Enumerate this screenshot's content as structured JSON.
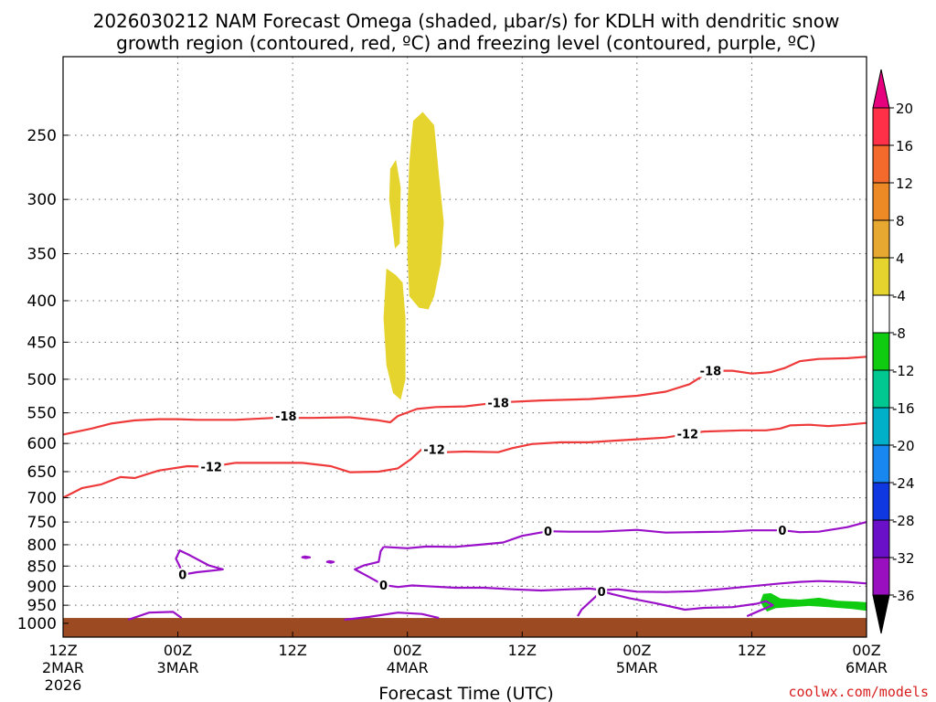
{
  "chart_data": {
    "type": "heatmap",
    "title_line1": "2026030212 NAM Forecast Omega (shaded, µbar/s) for KDLH with dendritic snow",
    "title_line2": "growth region (contoured, red, ºC) and freezing level (contoured, purple, ºC)",
    "xlabel": "Forecast Time (UTC)",
    "ylabel": "",
    "y_scale": "log-pressure",
    "y_ticks": [
      250,
      300,
      350,
      400,
      450,
      500,
      550,
      600,
      650,
      700,
      750,
      800,
      850,
      900,
      950,
      1000
    ],
    "y_unit": "mb",
    "x_ticks": [
      {
        "hour": 0,
        "l1": "12Z",
        "l2": "2MAR",
        "l3": "2026"
      },
      {
        "hour": 12,
        "l1": "00Z",
        "l2": "3MAR",
        "l3": ""
      },
      {
        "hour": 24,
        "l1": "12Z",
        "l2": "",
        "l3": ""
      },
      {
        "hour": 36,
        "l1": "00Z",
        "l2": "4MAR",
        "l3": ""
      },
      {
        "hour": 48,
        "l1": "12Z",
        "l2": "",
        "l3": ""
      },
      {
        "hour": 60,
        "l1": "00Z",
        "l2": "5MAR",
        "l3": ""
      },
      {
        "hour": 72,
        "l1": "12Z",
        "l2": "",
        "l3": ""
      },
      {
        "hour": 84,
        "l1": "00Z",
        "l2": "6MAR",
        "l3": ""
      }
    ],
    "x_range_hours": [
      0,
      84
    ],
    "grid": true,
    "colorbar": {
      "levels": [
        20,
        16,
        12,
        8,
        4,
        -4,
        -8,
        -12,
        -16,
        -20,
        -24,
        -28,
        -32,
        -36
      ],
      "colors": [
        "#ff3048",
        "#f46a2c",
        "#ee8a26",
        "#e6a830",
        "#e6d42e",
        "#ffffff",
        "#10cc10",
        "#00c890",
        "#00b0c8",
        "#1888f0",
        "#1038e0",
        "#6a10c8",
        "#9a10c0",
        "#a8a8a8"
      ],
      "top_arrow_color": "#e6007e",
      "bottom_arrow_color": "#000000"
    },
    "contour_colors": {
      "dgz": "#ee3a3a",
      "freezing": "#9a10c8",
      "ground": "#9b4a22"
    },
    "dgz_contours": [
      {
        "label": "-18",
        "label_points": [
          [
            23.3,
            555
          ],
          [
            45.5,
            534
          ],
          [
            67.7,
            488
          ]
        ],
        "points": [
          [
            0,
            585
          ],
          [
            3,
            575
          ],
          [
            5,
            567
          ],
          [
            7.5,
            562
          ],
          [
            10,
            560
          ],
          [
            12,
            560
          ],
          [
            14,
            561
          ],
          [
            18,
            561
          ],
          [
            22,
            558
          ],
          [
            26,
            558
          ],
          [
            30,
            557
          ],
          [
            33,
            562
          ],
          [
            34.2,
            565
          ],
          [
            35,
            555
          ],
          [
            37,
            544
          ],
          [
            39,
            541
          ],
          [
            42,
            540
          ],
          [
            45.5,
            534
          ],
          [
            50,
            531
          ],
          [
            55,
            529
          ],
          [
            60,
            524
          ],
          [
            63,
            518
          ],
          [
            65.5,
            507
          ],
          [
            67.7,
            488
          ],
          [
            70,
            488
          ],
          [
            72,
            492
          ],
          [
            74,
            490
          ],
          [
            75.5,
            484
          ],
          [
            77,
            475
          ],
          [
            79,
            472
          ],
          [
            82,
            471
          ],
          [
            84,
            469
          ]
        ]
      },
      {
        "label": "-12",
        "label_points": [
          [
            15.5,
            641
          ],
          [
            38.8,
            610
          ],
          [
            65.3,
            584
          ]
        ],
        "points": [
          [
            0,
            700
          ],
          [
            2,
            681
          ],
          [
            4,
            674
          ],
          [
            6,
            660
          ],
          [
            7.5,
            662
          ],
          [
            10,
            648
          ],
          [
            13,
            640
          ],
          [
            15.5,
            641
          ],
          [
            18,
            634
          ],
          [
            21,
            634
          ],
          [
            25,
            634
          ],
          [
            28,
            640
          ],
          [
            30,
            651
          ],
          [
            33,
            650
          ],
          [
            35,
            644
          ],
          [
            36.4,
            627
          ],
          [
            37.5,
            610
          ],
          [
            38.8,
            610
          ],
          [
            40,
            615
          ],
          [
            42,
            614
          ],
          [
            45.5,
            615
          ],
          [
            47,
            608
          ],
          [
            49,
            601
          ],
          [
            52,
            598
          ],
          [
            55,
            598
          ],
          [
            58,
            595
          ],
          [
            61,
            592
          ],
          [
            63,
            590
          ],
          [
            65.3,
            584
          ],
          [
            67,
            580
          ],
          [
            71,
            578
          ],
          [
            73.5,
            578
          ],
          [
            75,
            575
          ],
          [
            76,
            570
          ],
          [
            78,
            569
          ],
          [
            80,
            571
          ],
          [
            82,
            569
          ],
          [
            84,
            566
          ]
        ]
      }
    ],
    "freezing_contours": [
      {
        "label": "0",
        "label_points": [
          [
            50.7,
            770
          ],
          [
            75.2,
            768
          ]
        ],
        "points": [
          [
            33.5,
            805
          ],
          [
            36,
            808
          ],
          [
            38,
            804
          ],
          [
            41,
            805
          ],
          [
            44,
            799
          ],
          [
            46,
            795
          ],
          [
            48,
            780
          ],
          [
            50.7,
            770
          ],
          [
            53,
            771
          ],
          [
            56,
            771
          ],
          [
            60,
            767
          ],
          [
            63,
            773
          ],
          [
            66,
            772
          ],
          [
            69,
            771
          ],
          [
            72,
            768
          ],
          [
            75.2,
            768
          ],
          [
            77,
            772
          ],
          [
            79,
            771
          ],
          [
            82,
            761
          ],
          [
            84,
            750
          ]
        ]
      },
      {
        "label": "0",
        "label_points": [
          [
            33.5,
            897
          ]
        ],
        "points": [
          [
            33.5,
            805
          ],
          [
            33.2,
            815
          ],
          [
            33,
            840
          ],
          [
            31.5,
            848
          ],
          [
            30.5,
            858
          ],
          [
            32,
            877
          ],
          [
            33.5,
            897
          ],
          [
            35,
            902
          ],
          [
            36.5,
            898
          ],
          [
            38,
            900
          ],
          [
            41,
            904
          ],
          [
            44,
            904
          ],
          [
            47,
            908
          ],
          [
            50,
            911
          ],
          [
            53,
            908
          ],
          [
            55,
            906
          ],
          [
            56.5,
            910
          ],
          [
            58,
            908
          ],
          [
            60,
            914
          ],
          [
            63,
            915
          ],
          [
            66,
            913
          ],
          [
            69,
            907
          ],
          [
            72,
            900
          ],
          [
            75,
            893
          ],
          [
            77,
            889
          ],
          [
            79,
            887
          ],
          [
            82,
            889
          ],
          [
            84,
            893
          ]
        ]
      },
      {
        "label": "0",
        "label_points": [
          [
            12.5,
            871
          ]
        ],
        "points": [
          [
            12.5,
            871
          ],
          [
            14,
            865
          ],
          [
            16,
            860
          ],
          [
            16.7,
            858
          ],
          [
            15.2,
            848
          ],
          [
            13.3,
            825
          ],
          [
            12.2,
            813
          ],
          [
            11.8,
            832
          ],
          [
            12.2,
            851
          ],
          [
            12.5,
            871
          ]
        ]
      },
      {
        "label": "0",
        "label_points": [
          [
            56.3,
            913
          ]
        ],
        "points": [
          [
            53.8,
            980
          ],
          [
            54.2,
            962
          ],
          [
            55,
            943
          ],
          [
            56.3,
            913
          ],
          [
            57.5,
            921
          ],
          [
            59.2,
            931
          ],
          [
            62,
            945
          ],
          [
            65,
            962
          ],
          [
            67,
            957
          ],
          [
            70,
            955
          ],
          [
            72.5,
            946
          ],
          [
            73.5,
            939
          ],
          [
            74.2,
            950
          ],
          [
            72.8,
            965
          ],
          [
            71.5,
            980
          ]
        ]
      },
      {
        "label": "",
        "label_points": [],
        "points": [
          [
            6.8,
            990
          ],
          [
            9,
            970
          ],
          [
            11.5,
            968
          ],
          [
            12.4,
            985
          ]
        ]
      },
      {
        "label": "",
        "label_points": [],
        "points": [
          [
            29.4,
            990
          ],
          [
            32,
            982
          ],
          [
            35,
            970
          ],
          [
            37.5,
            974
          ],
          [
            39.3,
            985
          ]
        ]
      },
      {
        "label": "",
        "label_points": [],
        "points": [
          [
            25.2,
            827
          ],
          [
            25.8,
            829
          ],
          [
            25.4,
            831
          ],
          [
            25.0,
            829
          ],
          [
            25.2,
            827
          ]
        ]
      },
      {
        "label": "",
        "label_points": [],
        "points": [
          [
            27.8,
            838
          ],
          [
            28.3,
            840
          ],
          [
            28.0,
            842
          ],
          [
            27.6,
            840
          ],
          [
            27.8,
            838
          ]
        ]
      }
    ],
    "omega_regions": [
      {
        "value_range": [
          4,
          8
        ],
        "points": [
          [
            36.6,
            240
          ],
          [
            37.6,
            234
          ],
          [
            38.8,
            243
          ],
          [
            39.3,
            280
          ],
          [
            39.8,
            320
          ],
          [
            39.5,
            360
          ],
          [
            38.8,
            395
          ],
          [
            38.2,
            410
          ],
          [
            37.2,
            408
          ],
          [
            36.2,
            395
          ],
          [
            36.0,
            350
          ],
          [
            36.0,
            310
          ],
          [
            36.2,
            270
          ],
          [
            36.6,
            240
          ]
        ]
      },
      {
        "value_range": [
          4,
          8
        ],
        "points": [
          [
            34.2,
            275
          ],
          [
            34.8,
            268
          ],
          [
            35.3,
            290
          ],
          [
            35.2,
            340
          ],
          [
            34.7,
            345
          ],
          [
            34.1,
            300
          ],
          [
            34.2,
            275
          ]
        ]
      },
      {
        "value_range": [
          4,
          8
        ],
        "points": [
          [
            33.8,
            365
          ],
          [
            34.8,
            372
          ],
          [
            35.5,
            380
          ],
          [
            35.8,
            420
          ],
          [
            35.8,
            500
          ],
          [
            35.3,
            530
          ],
          [
            34.5,
            520
          ],
          [
            33.8,
            480
          ],
          [
            33.5,
            420
          ],
          [
            33.8,
            365
          ]
        ]
      },
      {
        "value_range": [
          -8,
          -4
        ],
        "points": [
          [
            73.2,
            920
          ],
          [
            74,
            918
          ],
          [
            75,
            932
          ],
          [
            77,
            935
          ],
          [
            79,
            930
          ],
          [
            81,
            938
          ],
          [
            83,
            940
          ],
          [
            84,
            942
          ],
          [
            84,
            965
          ],
          [
            82.5,
            960
          ],
          [
            80,
            955
          ],
          [
            78,
            952
          ],
          [
            76,
            955
          ],
          [
            74.5,
            958
          ],
          [
            73.6,
            967
          ],
          [
            73.2,
            955
          ],
          [
            72.9,
            940
          ],
          [
            73.2,
            920
          ]
        ]
      }
    ],
    "ground_top_mb": 985,
    "bottom_pressure_mb": 1040,
    "credit": "coolwx.com/models"
  }
}
